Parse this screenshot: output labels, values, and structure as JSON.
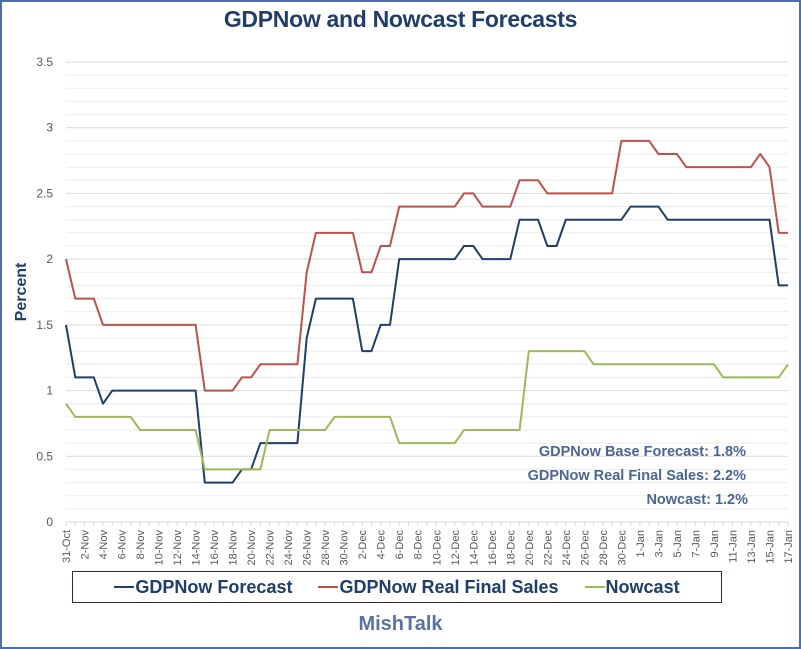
{
  "chart_data": {
    "type": "line",
    "title": "GDPNow and Nowcast Forecasts",
    "xlabel": "",
    "ylabel": "Percent",
    "ylim": [
      0,
      3.5
    ],
    "yticks": [
      "0",
      "0.5",
      "1",
      "1.5",
      "2",
      "2.5",
      "3",
      "3.5"
    ],
    "ytick_values": [
      0,
      0.5,
      1,
      1.5,
      2,
      2.5,
      3,
      3.5
    ],
    "minor_grid_step": 0.1,
    "grid": true,
    "x_start": "31-Oct",
    "x_end": "17-Jan",
    "x_days": 78,
    "xticks": [
      "31-Oct",
      "2-Nov",
      "4-Nov",
      "6-Nov",
      "8-Nov",
      "10-Nov",
      "12-Nov",
      "14-Nov",
      "16-Nov",
      "18-Nov",
      "20-Nov",
      "22-Nov",
      "24-Nov",
      "26-Nov",
      "28-Nov",
      "30-Nov",
      "2-Dec",
      "4-Dec",
      "6-Dec",
      "8-Dec",
      "10-Dec",
      "12-Dec",
      "14-Dec",
      "16-Dec",
      "18-Dec",
      "20-Dec",
      "22-Dec",
      "24-Dec",
      "26-Dec",
      "28-Dec",
      "30-Dec",
      "1-Jan",
      "3-Jan",
      "5-Jan",
      "7-Jan",
      "9-Jan",
      "11-Jan",
      "13-Jan",
      "15-Jan",
      "17-Jan"
    ],
    "legend_position": "bottom",
    "series": [
      {
        "name": "GDPNow Forecast",
        "color": "#1f3e6b",
        "points": [
          [
            0,
            1.5
          ],
          [
            1,
            1.1
          ],
          [
            3,
            1.1
          ],
          [
            4,
            0.9
          ],
          [
            5,
            1.0
          ],
          [
            14,
            1.0
          ],
          [
            15,
            0.3
          ],
          [
            18,
            0.3
          ],
          [
            19,
            0.4
          ],
          [
            20,
            0.4
          ],
          [
            21,
            0.6
          ],
          [
            25,
            0.6
          ],
          [
            26,
            1.4
          ],
          [
            27,
            1.7
          ],
          [
            31,
            1.7
          ],
          [
            32,
            1.3
          ],
          [
            33,
            1.3
          ],
          [
            34,
            1.5
          ],
          [
            35,
            1.5
          ],
          [
            36,
            2.0
          ],
          [
            42,
            2.0
          ],
          [
            43,
            2.1
          ],
          [
            44,
            2.1
          ],
          [
            45,
            2.0
          ],
          [
            48,
            2.0
          ],
          [
            49,
            2.3
          ],
          [
            51,
            2.3
          ],
          [
            52,
            2.1
          ],
          [
            53,
            2.1
          ],
          [
            54,
            2.3
          ],
          [
            60,
            2.3
          ],
          [
            61,
            2.4
          ],
          [
            64,
            2.4
          ],
          [
            65,
            2.3
          ],
          [
            76,
            2.3
          ],
          [
            77,
            1.8
          ],
          [
            78,
            1.8
          ]
        ]
      },
      {
        "name": "GDPNow Real Final Sales",
        "color": "#c0504d",
        "points": [
          [
            0,
            2.0
          ],
          [
            1,
            1.7
          ],
          [
            3,
            1.7
          ],
          [
            4,
            1.5
          ],
          [
            14,
            1.5
          ],
          [
            15,
            1.0
          ],
          [
            18,
            1.0
          ],
          [
            19,
            1.1
          ],
          [
            20,
            1.1
          ],
          [
            21,
            1.2
          ],
          [
            25,
            1.2
          ],
          [
            26,
            1.9
          ],
          [
            27,
            2.2
          ],
          [
            31,
            2.2
          ],
          [
            32,
            1.9
          ],
          [
            33,
            1.9
          ],
          [
            34,
            2.1
          ],
          [
            35,
            2.1
          ],
          [
            36,
            2.4
          ],
          [
            42,
            2.4
          ],
          [
            43,
            2.5
          ],
          [
            44,
            2.5
          ],
          [
            45,
            2.4
          ],
          [
            48,
            2.4
          ],
          [
            49,
            2.6
          ],
          [
            51,
            2.6
          ],
          [
            52,
            2.5
          ],
          [
            59,
            2.5
          ],
          [
            60,
            2.9
          ],
          [
            63,
            2.9
          ],
          [
            64,
            2.8
          ],
          [
            66,
            2.8
          ],
          [
            67,
            2.7
          ],
          [
            74,
            2.7
          ],
          [
            75,
            2.8
          ],
          [
            76,
            2.7
          ],
          [
            77,
            2.2
          ],
          [
            78,
            2.2
          ]
        ]
      },
      {
        "name": "Nowcast",
        "color": "#9bbb59",
        "points": [
          [
            0,
            0.9
          ],
          [
            1,
            0.8
          ],
          [
            7,
            0.8
          ],
          [
            8,
            0.7
          ],
          [
            14,
            0.7
          ],
          [
            15,
            0.4
          ],
          [
            21,
            0.4
          ],
          [
            22,
            0.7
          ],
          [
            28,
            0.7
          ],
          [
            29,
            0.8
          ],
          [
            35,
            0.8
          ],
          [
            36,
            0.6
          ],
          [
            42,
            0.6
          ],
          [
            43,
            0.7
          ],
          [
            49,
            0.7
          ],
          [
            50,
            1.3
          ],
          [
            56,
            1.3
          ],
          [
            57,
            1.2
          ],
          [
            70,
            1.2
          ],
          [
            71,
            1.1
          ],
          [
            77,
            1.1
          ],
          [
            78,
            1.2
          ]
        ]
      }
    ],
    "annotations": [
      "GDPNow Base Forecast: 1.8%",
      "GDPNow Real Final Sales: 2.2%",
      "Nowcast: 1.2%"
    ]
  },
  "legend": {
    "items": [
      {
        "label": "GDPNow Forecast",
        "color": "#1f3e6b"
      },
      {
        "label": "GDPNow Real Final Sales",
        "color": "#c0504d"
      },
      {
        "label": "Nowcast",
        "color": "#9bbb59"
      }
    ]
  },
  "footer": "MishTalk"
}
